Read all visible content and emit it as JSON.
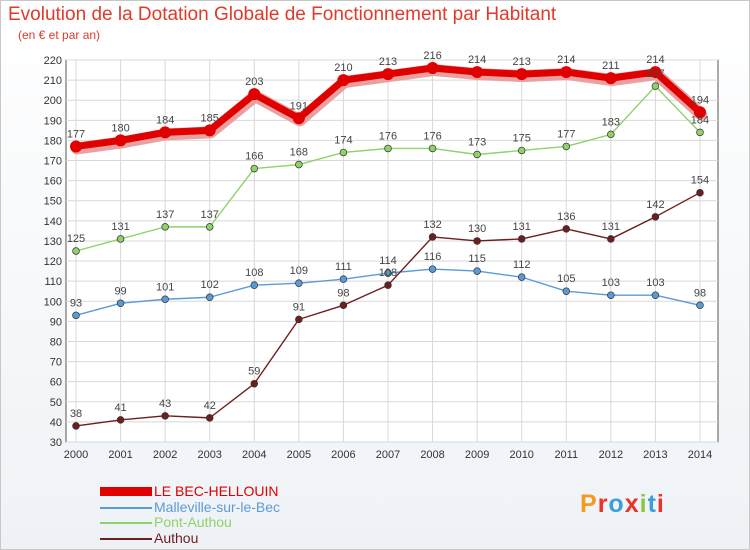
{
  "header": {
    "title": "Evolution de la Dotation Globale de Fonctionnement par Habitant",
    "subtitle": "(en € et par an)"
  },
  "logo": {
    "text": "Proxiti",
    "colors": [
      "#f59a1b",
      "#e8332a",
      "#3aa0d8",
      "#e8332a",
      "#8cc63f",
      "#3aa0d8",
      "#e8332a"
    ]
  },
  "chart_data": {
    "type": "line",
    "title": "Evolution de la Dotation Globale de Fonctionnement par Habitant",
    "subtitle": "(en € et par an)",
    "x": [
      "2000",
      "2001",
      "2002",
      "2003",
      "2004",
      "2005",
      "2006",
      "2007",
      "2008",
      "2009",
      "2010",
      "2011",
      "2012",
      "2013",
      "2014"
    ],
    "ylim": [
      30,
      220
    ],
    "yticks": [
      30,
      40,
      50,
      60,
      70,
      80,
      90,
      100,
      110,
      120,
      130,
      140,
      150,
      160,
      170,
      180,
      190,
      200,
      210,
      220
    ],
    "grid": true,
    "legend_position": "bottom-left",
    "series": [
      {
        "name": "LE BEC-HELLOUIN",
        "color": "#e00000",
        "values": [
          177,
          180,
          184,
          185,
          203,
          191,
          210,
          213,
          216,
          214,
          213,
          214,
          211,
          214,
          194
        ]
      },
      {
        "name": "Malleville-sur-le-Bec",
        "color": "#5b9bd5",
        "values": [
          93,
          99,
          101,
          102,
          108,
          109,
          111,
          114,
          116,
          115,
          112,
          105,
          103,
          103,
          98
        ]
      },
      {
        "name": "Pont-Authou",
        "color": "#8fd16a",
        "values": [
          125,
          131,
          137,
          137,
          166,
          168,
          174,
          176,
          176,
          173,
          175,
          177,
          183,
          207,
          184
        ]
      },
      {
        "name": "Authou",
        "color": "#6e1e1e",
        "values": [
          38,
          41,
          43,
          42,
          59,
          91,
          98,
          108,
          132,
          130,
          131,
          136,
          131,
          142,
          154
        ]
      }
    ]
  }
}
